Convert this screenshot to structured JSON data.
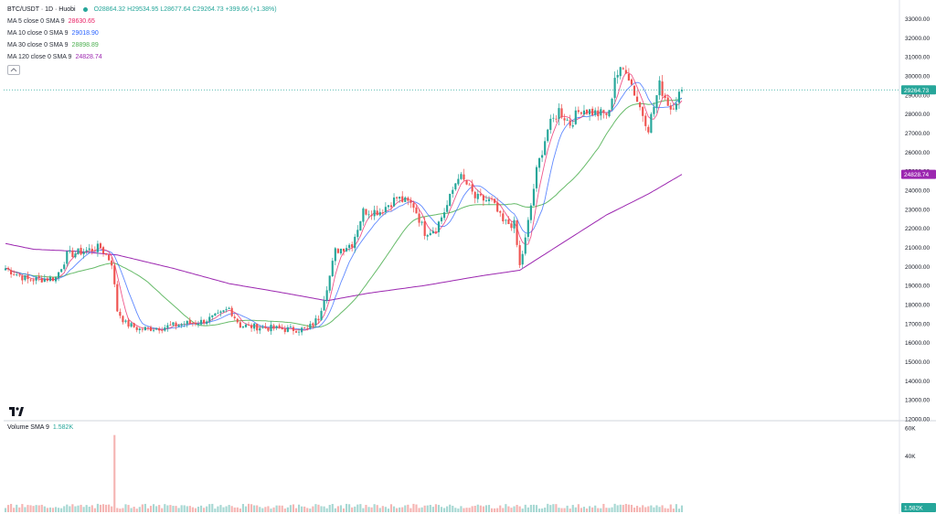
{
  "header": {
    "title": "BTC/USDT · 1D · Huobi",
    "ohlc": "O28864.32 H29534.95 L28677.64 C29264.73 +399.66 (+1.38%)"
  },
  "indicators": [
    {
      "label": "MA 5 close 0 SMA 9",
      "value": "28630.65",
      "color": "#e91e63"
    },
    {
      "label": "MA 10 close 0 SMA 9",
      "value": "29018.90",
      "color": "#2962ff"
    },
    {
      "label": "MA 30 close 0 SMA 9",
      "value": "28898.89",
      "color": "#4caf50"
    },
    {
      "label": "MA 120 close 0 SMA 9",
      "value": "24828.74",
      "color": "#9c27b0"
    }
  ],
  "volume": {
    "label": "Volume SMA 9",
    "value": "1.582K"
  },
  "price_tags": {
    "last": "29264.73",
    "ma120": "24828.74",
    "volume": "1.582K"
  },
  "colors": {
    "up": "#26a69a",
    "down": "#ef5350",
    "up_vol": "#a7d8d3",
    "down_vol": "#f5b5b3"
  },
  "chart_data": {
    "type": "candlestick",
    "yticks": [
      "33000.00",
      "32000.00",
      "31000.00",
      "30000.00",
      "29000.00",
      "28000.00",
      "27000.00",
      "26000.00",
      "25000.00",
      "24000.00",
      "23000.00",
      "22000.00",
      "21000.00",
      "20000.00",
      "19000.00",
      "18000.00",
      "17000.00",
      "16000.00",
      "15000.00",
      "14000.00",
      "13000.00",
      "12000.00"
    ],
    "ylim": [
      12000,
      33500
    ],
    "volume_ticks": [
      "60K",
      "40K"
    ],
    "volume_ylim": [
      0,
      60000
    ],
    "anchors": [
      [
        0,
        19900
      ],
      [
        8,
        19300
      ],
      [
        14,
        19350
      ],
      [
        18,
        19400
      ],
      [
        22,
        20600
      ],
      [
        28,
        20800
      ],
      [
        34,
        21000
      ],
      [
        38,
        20200
      ],
      [
        40,
        17700
      ],
      [
        43,
        17000
      ],
      [
        48,
        16700
      ],
      [
        56,
        16800
      ],
      [
        64,
        17000
      ],
      [
        70,
        17100
      ],
      [
        76,
        17400
      ],
      [
        80,
        17800
      ],
      [
        84,
        16900
      ],
      [
        92,
        16800
      ],
      [
        100,
        16700
      ],
      [
        108,
        16700
      ],
      [
        112,
        17300
      ],
      [
        116,
        19500
      ],
      [
        118,
        20800
      ],
      [
        124,
        21200
      ],
      [
        128,
        22900
      ],
      [
        134,
        22900
      ],
      [
        140,
        23600
      ],
      [
        146,
        23200
      ],
      [
        150,
        21800
      ],
      [
        154,
        22000
      ],
      [
        158,
        23200
      ],
      [
        162,
        24800
      ],
      [
        165,
        24300
      ],
      [
        168,
        23600
      ],
      [
        174,
        23400
      ],
      [
        178,
        22300
      ],
      [
        182,
        22200
      ],
      [
        184,
        20000
      ],
      [
        186,
        21400
      ],
      [
        190,
        25000
      ],
      [
        194,
        27200
      ],
      [
        198,
        28200
      ],
      [
        202,
        27500
      ],
      [
        206,
        28300
      ],
      [
        212,
        28000
      ],
      [
        216,
        28000
      ],
      [
        218,
        30000
      ],
      [
        222,
        30400
      ],
      [
        226,
        28700
      ],
      [
        230,
        27300
      ],
      [
        234,
        29500
      ],
      [
        238,
        28300
      ],
      [
        242,
        29264.73
      ]
    ],
    "ma120_anchors": [
      [
        0,
        21200
      ],
      [
        10,
        20900
      ],
      [
        25,
        20800
      ],
      [
        40,
        20600
      ],
      [
        60,
        19900
      ],
      [
        80,
        19100
      ],
      [
        100,
        18600
      ],
      [
        115,
        18200
      ],
      [
        130,
        18600
      ],
      [
        150,
        19000
      ],
      [
        170,
        19500
      ],
      [
        184,
        19800
      ],
      [
        200,
        21300
      ],
      [
        215,
        22700
      ],
      [
        230,
        23800
      ],
      [
        242,
        24828.74
      ]
    ],
    "volume_spike": {
      "index": 39,
      "value": 55000
    }
  }
}
